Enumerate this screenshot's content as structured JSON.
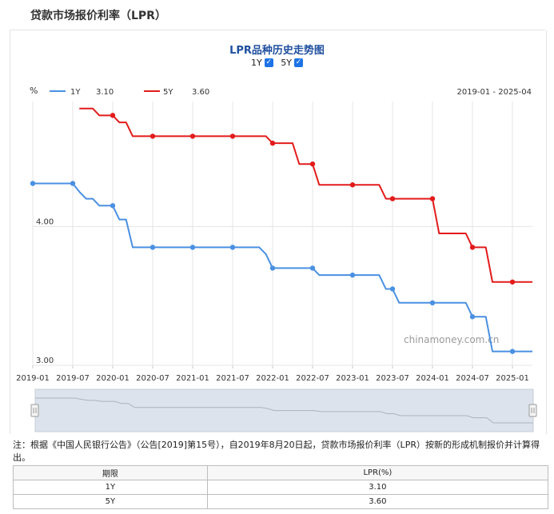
{
  "page": {
    "title": "贷款市场报价利率（LPR）"
  },
  "chart_header": {
    "title": "LPR品种历史走势图",
    "toggles": [
      {
        "label": "1Y",
        "checked": true
      },
      {
        "label": "5Y",
        "checked": true
      }
    ]
  },
  "legend": {
    "unit": "%",
    "items": [
      {
        "name": "1Y",
        "value": "3.10",
        "color": "#4a90e2"
      },
      {
        "name": "5Y",
        "value": "3.60",
        "color": "#e31b1b"
      }
    ],
    "range": "2019-01 - 2025-04"
  },
  "watermark": "chinamoney.com.cn",
  "chart_data": {
    "type": "line",
    "xaxis": {
      "start": "2019-01",
      "end": "2025-04",
      "tick_labels": [
        "2019-01",
        "2019-07",
        "2020-01",
        "2020-07",
        "2021-01",
        "2021-07",
        "2022-01",
        "2022-07",
        "2023-01",
        "2023-07",
        "2024-01",
        "2024-07",
        "2025-01"
      ]
    },
    "yaxis": {
      "tick_labels": [
        "3.00",
        "4.00"
      ],
      "ylim": [
        3.0,
        4.9
      ]
    },
    "series": [
      {
        "name": "1Y",
        "color": "#4a90e2",
        "points": [
          [
            "2019-01",
            4.31
          ],
          [
            "2019-07",
            4.31
          ],
          [
            "2019-08",
            4.25
          ],
          [
            "2019-09",
            4.2
          ],
          [
            "2019-10",
            4.2
          ],
          [
            "2019-11",
            4.15
          ],
          [
            "2019-12",
            4.15
          ],
          [
            "2020-01",
            4.15
          ],
          [
            "2020-02",
            4.05
          ],
          [
            "2020-03",
            4.05
          ],
          [
            "2020-04",
            3.85
          ],
          [
            "2020-07",
            3.85
          ],
          [
            "2021-01",
            3.85
          ],
          [
            "2021-07",
            3.85
          ],
          [
            "2021-11",
            3.85
          ],
          [
            "2021-12",
            3.8
          ],
          [
            "2022-01",
            3.7
          ],
          [
            "2022-07",
            3.7
          ],
          [
            "2022-08",
            3.65
          ],
          [
            "2023-01",
            3.65
          ],
          [
            "2023-05",
            3.65
          ],
          [
            "2023-06",
            3.55
          ],
          [
            "2023-07",
            3.55
          ],
          [
            "2023-08",
            3.45
          ],
          [
            "2024-01",
            3.45
          ],
          [
            "2024-06",
            3.45
          ],
          [
            "2024-07",
            3.35
          ],
          [
            "2024-09",
            3.35
          ],
          [
            "2024-10",
            3.1
          ],
          [
            "2025-01",
            3.1
          ],
          [
            "2025-04",
            3.1
          ]
        ],
        "markers": [
          [
            "2019-01",
            4.31
          ],
          [
            "2019-07",
            4.31
          ],
          [
            "2020-01",
            4.15
          ],
          [
            "2020-07",
            3.85
          ],
          [
            "2021-01",
            3.85
          ],
          [
            "2021-07",
            3.85
          ],
          [
            "2022-01",
            3.7
          ],
          [
            "2022-07",
            3.7
          ],
          [
            "2023-01",
            3.65
          ],
          [
            "2023-07",
            3.55
          ],
          [
            "2024-01",
            3.45
          ],
          [
            "2024-07",
            3.35
          ],
          [
            "2025-01",
            3.1
          ]
        ]
      },
      {
        "name": "5Y",
        "color": "#e31b1b",
        "points": [
          [
            "2019-08",
            4.85
          ],
          [
            "2019-10",
            4.85
          ],
          [
            "2019-11",
            4.8
          ],
          [
            "2020-01",
            4.8
          ],
          [
            "2020-02",
            4.75
          ],
          [
            "2020-03",
            4.75
          ],
          [
            "2020-04",
            4.65
          ],
          [
            "2020-07",
            4.65
          ],
          [
            "2021-01",
            4.65
          ],
          [
            "2021-07",
            4.65
          ],
          [
            "2021-12",
            4.65
          ],
          [
            "2022-01",
            4.6
          ],
          [
            "2022-02",
            4.6
          ],
          [
            "2022-04",
            4.6
          ],
          [
            "2022-05",
            4.45
          ],
          [
            "2022-07",
            4.45
          ],
          [
            "2022-08",
            4.3
          ],
          [
            "2023-01",
            4.3
          ],
          [
            "2023-05",
            4.3
          ],
          [
            "2023-06",
            4.2
          ],
          [
            "2023-07",
            4.2
          ],
          [
            "2024-01",
            4.2
          ],
          [
            "2024-02",
            3.95
          ],
          [
            "2024-06",
            3.95
          ],
          [
            "2024-07",
            3.85
          ],
          [
            "2024-09",
            3.85
          ],
          [
            "2024-10",
            3.6
          ],
          [
            "2025-01",
            3.6
          ],
          [
            "2025-04",
            3.6
          ]
        ],
        "markers": [
          [
            "2020-01",
            4.8
          ],
          [
            "2020-07",
            4.65
          ],
          [
            "2021-01",
            4.65
          ],
          [
            "2021-07",
            4.65
          ],
          [
            "2022-01",
            4.6
          ],
          [
            "2022-07",
            4.45
          ],
          [
            "2023-01",
            4.3
          ],
          [
            "2023-07",
            4.2
          ],
          [
            "2024-01",
            4.2
          ],
          [
            "2024-07",
            3.85
          ],
          [
            "2025-01",
            3.6
          ]
        ]
      }
    ]
  },
  "note": "注：根据《中国人民银行公告》（公告[2019]第15号），自2019年8月20日起，贷款市场报价利率（LPR）按新的形成机制报价并计算得出。",
  "table": {
    "headers": [
      "期限",
      "LPR(%)"
    ],
    "rows": [
      [
        "1Y",
        "3.10"
      ],
      [
        "5Y",
        "3.60"
      ]
    ]
  }
}
